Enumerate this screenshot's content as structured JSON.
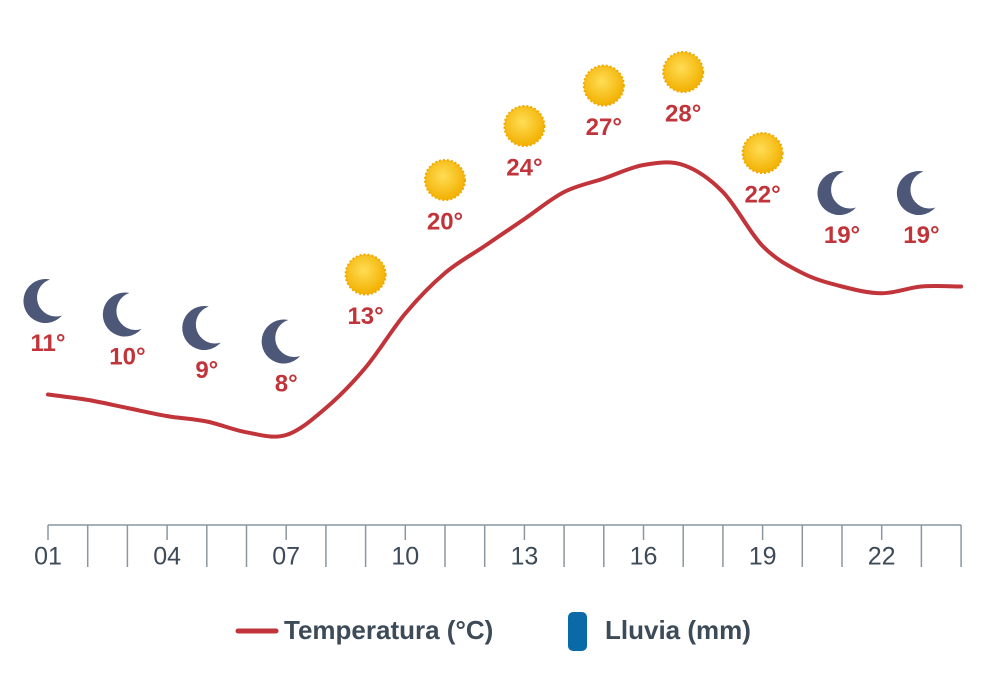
{
  "chart_data": {
    "type": "line",
    "categories": [
      "01",
      null,
      null,
      "04",
      null,
      null,
      "07",
      null,
      null,
      "10",
      null,
      null,
      "13",
      null,
      null,
      "16",
      null,
      null,
      "19",
      null,
      null,
      "22",
      null,
      null
    ],
    "series": [
      {
        "name": "Temperatura (°C)",
        "color": "#c0343a",
        "values": [
          11,
          10.6,
          10,
          9.4,
          9,
          8.2,
          8,
          10,
          13,
          17,
          20,
          22,
          24,
          26,
          27,
          28,
          28,
          26,
          22,
          20,
          19,
          18.5,
          19,
          19
        ],
        "value_labels": [
          "11°",
          null,
          "10°",
          null,
          "9°",
          null,
          "8°",
          null,
          "13°",
          null,
          "20°",
          null,
          "24°",
          null,
          "27°",
          null,
          "28°",
          null,
          "22°",
          null,
          "19°",
          null,
          "19°",
          null
        ],
        "icons": [
          "moon",
          null,
          "moon",
          null,
          "moon",
          null,
          "moon",
          null,
          "sun",
          null,
          "sun",
          null,
          "sun",
          null,
          "sun",
          null,
          "sun",
          null,
          "sun",
          null,
          "moon",
          null,
          "moon",
          null
        ]
      },
      {
        "name": "Lluvia (mm)",
        "color": "#0a6aa8"
      }
    ],
    "ylim": [
      0,
      30
    ]
  }
}
